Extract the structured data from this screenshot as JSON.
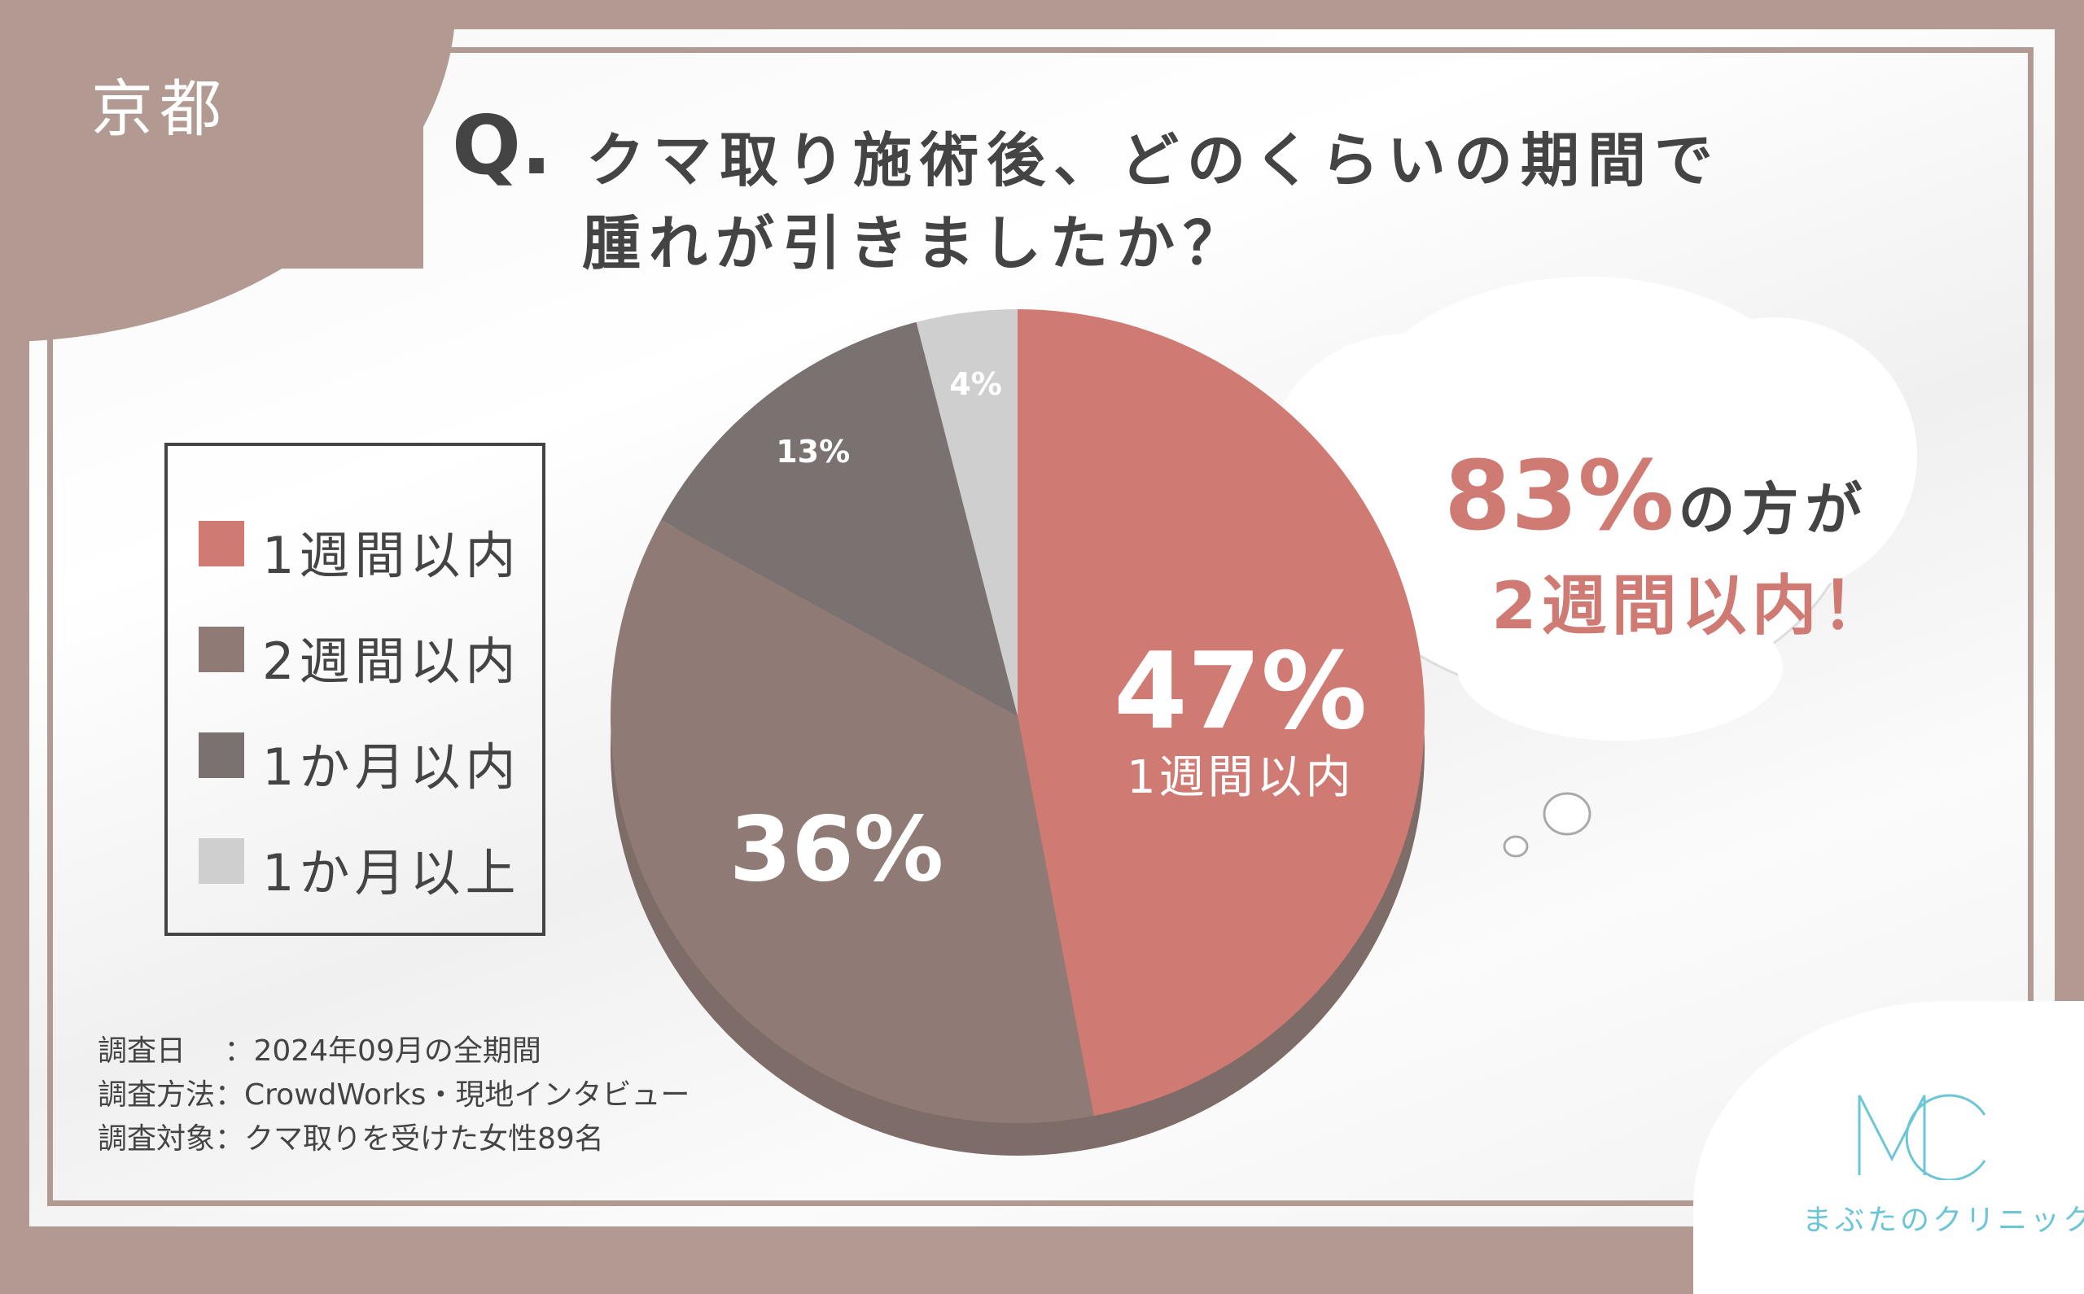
{
  "header": {
    "city": "京都",
    "q_mark": "Q.",
    "question_line1": "クマ取り施術後、どのくらいの期間で",
    "question_line2": "腫れが引きましたか？"
  },
  "legend": {
    "items": [
      {
        "label": "1週間以内",
        "color": "#d07a74"
      },
      {
        "label": "2週間以内",
        "color": "#8f7a76"
      },
      {
        "label": "1か月以内",
        "color": "#7a7270"
      },
      {
        "label": "1か月以上",
        "color": "#cfcfcf"
      }
    ]
  },
  "chart_data": {
    "type": "pie",
    "categories": [
      "1週間以内",
      "2週間以内",
      "1か月以内",
      "1か月以上"
    ],
    "values": [
      47,
      36,
      13,
      4
    ],
    "unit": "%",
    "colors": [
      "#d07a74",
      "#8f7a76",
      "#7a7270",
      "#cfcfcf"
    ],
    "data_labels": [
      "47%",
      "36%",
      "13%",
      "4%"
    ],
    "highlight_label": "1週間以内"
  },
  "callout": {
    "value": "83%",
    "text1": "の方が",
    "text2": "2週間以内！"
  },
  "survey": {
    "lines": [
      "調査日　 ：2024年09月の全期間",
      "調査方法：CrowdWorks・現地インタビュー",
      "調査対象：クマ取りを受けた女性89名"
    ]
  },
  "logo": {
    "mark": "MC",
    "name": "まぶたのクリニック",
    "color": "#6cc6d8"
  }
}
